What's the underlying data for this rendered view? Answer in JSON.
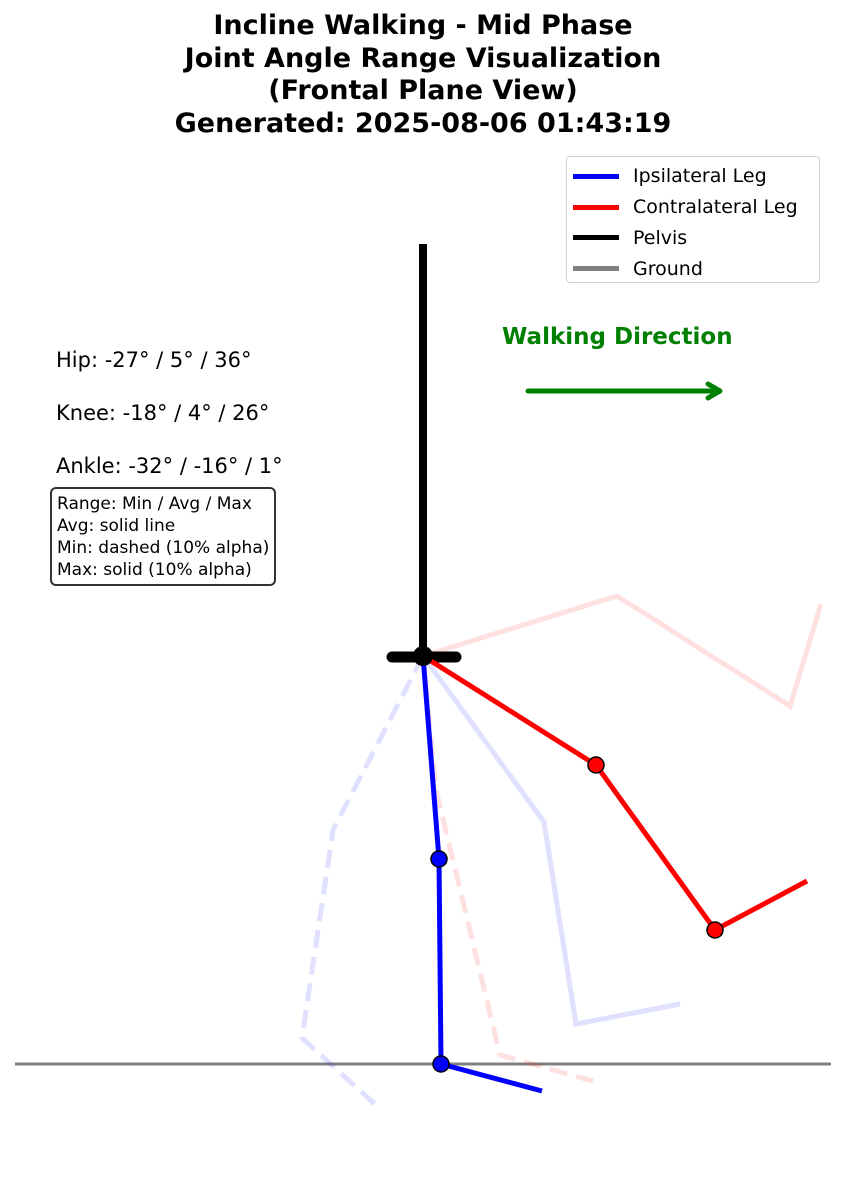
{
  "title": {
    "line1": "Incline Walking - Mid Phase",
    "line2": "Joint Angle Range Visualization",
    "line3": "(Frontal Plane View)",
    "line4": "Generated: 2025-08-06 01:43:19"
  },
  "legend": [
    {
      "label": "Ipsilateral Leg",
      "color": "#0000ff"
    },
    {
      "label": "Contralateral Leg",
      "color": "#ff0000"
    },
    {
      "label": "Pelvis",
      "color": "#000000"
    },
    {
      "label": "Ground",
      "color": "#808080"
    }
  ],
  "angles": {
    "hip": "Hip: -27° / 5° / 36°",
    "knee": "Knee: -18° / 4° / 26°",
    "ankle": "Ankle: -32° / -16° / 1°"
  },
  "note": {
    "line1": "Range: Min / Avg / Max",
    "line2": "Avg: solid line",
    "line3": "Min: dashed (10% alpha)",
    "line4": "Max: solid (10% alpha)"
  },
  "direction": {
    "label": "Walking Direction",
    "color": "#008000"
  },
  "colors": {
    "ipsilateral": "#0000ff",
    "contralateral": "#ff0000",
    "pelvis": "#000000",
    "ground": "#808080"
  }
}
